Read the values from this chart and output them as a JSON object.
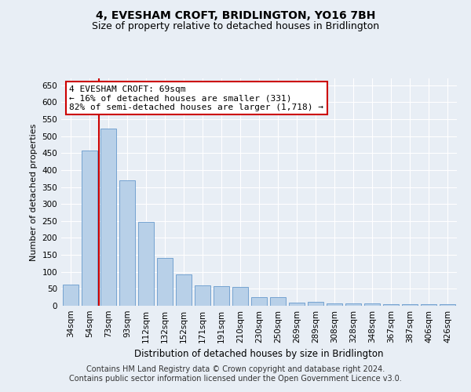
{
  "title": "4, EVESHAM CROFT, BRIDLINGTON, YO16 7BH",
  "subtitle": "Size of property relative to detached houses in Bridlington",
  "xlabel": "Distribution of detached houses by size in Bridlington",
  "ylabel": "Number of detached properties",
  "bar_labels": [
    "34sqm",
    "54sqm",
    "73sqm",
    "93sqm",
    "112sqm",
    "132sqm",
    "152sqm",
    "171sqm",
    "191sqm",
    "210sqm",
    "230sqm",
    "250sqm",
    "269sqm",
    "289sqm",
    "308sqm",
    "328sqm",
    "348sqm",
    "367sqm",
    "387sqm",
    "406sqm",
    "426sqm"
  ],
  "bar_values": [
    62,
    457,
    521,
    369,
    248,
    140,
    93,
    60,
    58,
    56,
    25,
    25,
    10,
    12,
    8,
    7,
    6,
    5,
    5,
    4,
    4
  ],
  "bar_color": "#b8d0e8",
  "bar_edge_color": "#6699cc",
  "vline_index": 1.5,
  "vline_color": "#cc0000",
  "annotation_text": "4 EVESHAM CROFT: 69sqm\n← 16% of detached houses are smaller (331)\n82% of semi-detached houses are larger (1,718) →",
  "annotation_box_facecolor": "#ffffff",
  "annotation_box_edgecolor": "#cc0000",
  "ylim": [
    0,
    670
  ],
  "yticks": [
    0,
    50,
    100,
    150,
    200,
    250,
    300,
    350,
    400,
    450,
    500,
    550,
    600,
    650
  ],
  "bg_color": "#e8eef5",
  "plot_bg_color": "#e8eef5",
  "grid_color": "#ffffff",
  "footer_text": "Contains HM Land Registry data © Crown copyright and database right 2024.\nContains public sector information licensed under the Open Government Licence v3.0.",
  "title_fontsize": 10,
  "subtitle_fontsize": 9,
  "xlabel_fontsize": 8.5,
  "ylabel_fontsize": 8,
  "tick_fontsize": 7.5,
  "annotation_fontsize": 8,
  "footer_fontsize": 7
}
